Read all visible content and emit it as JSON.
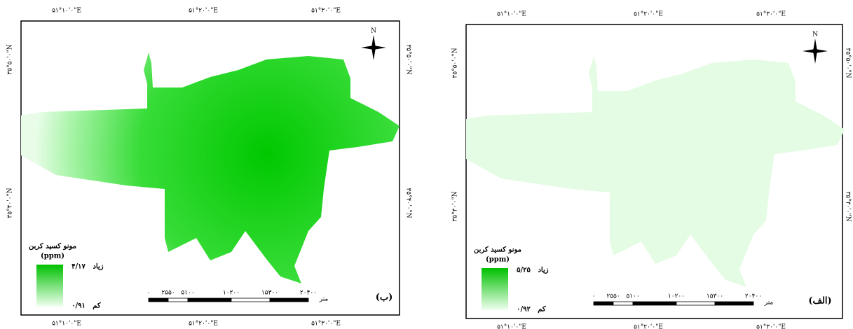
{
  "panels": [
    {
      "label": "(ب)",
      "top_labels": [
        "۵۱°۱۰'۰\"E",
        "۵۱°۲۰'۰\"E",
        "۵۱°۳۰'۰\"E"
      ],
      "bottom_labels": [
        "۵۱°۱۰'۰\"E",
        "۵۱°۲۰'۰\"E",
        "۵۱°۳۰'۰\"E"
      ],
      "left_labels": [
        "۳۵°۵۰'۰\"N",
        "۳۵°۴۰'۰\"N"
      ],
      "right_labels": [
        "۳۵°۵۰'۰\"N",
        "۳۵°۴۰'۰\"N"
      ],
      "north": "N",
      "legend": {
        "title": "مونو کسید کربن",
        "unit": "(ppm)",
        "high_label": "زیاد",
        "high_value": "۴/۱۷",
        "low_label": "کم",
        "low_value": "۰/۹۱"
      },
      "scale": {
        "ticks": [
          "۰",
          "۲۵۵۰",
          "۵۱۰۰",
          "۱۰۲۰۰",
          "۱۵۳۰۰",
          "۲۰۴۰۰"
        ],
        "unit": "متر"
      }
    },
    {
      "label": "(الف)",
      "top_labels": [
        "۵۱°۱۰'۰\"E",
        "۵۱°۲۰'۰\"E",
        "۵۱°۳۰'۰\"E"
      ],
      "bottom_labels": [
        "۵۱°۱۰'۰\"E",
        "۵۱°۲۰'۰\"E",
        "۵۱°۳۰'۰\"E"
      ],
      "left_labels": [
        "۳۵°۵۰'۰\"N",
        "۳۵°۴۰'۰\"N"
      ],
      "right_labels": [
        "۳۵°۵۰'۰\"N",
        "۳۵°۴۰'۰\"N"
      ],
      "north": "N",
      "legend": {
        "title": "مونو کسید کربن",
        "unit": "(ppm)",
        "high_label": "زیاد",
        "high_value": "۵/۲۵",
        "low_label": "کم",
        "low_value": "۰/۹۲"
      },
      "scale": {
        "ticks": [
          "۰",
          "۲۵۵۰",
          "۵۱۰۰",
          "۱۰۲۰۰",
          "۱۵۳۰۰",
          "۲۰۴۰۰"
        ],
        "unit": "متر"
      }
    }
  ]
}
